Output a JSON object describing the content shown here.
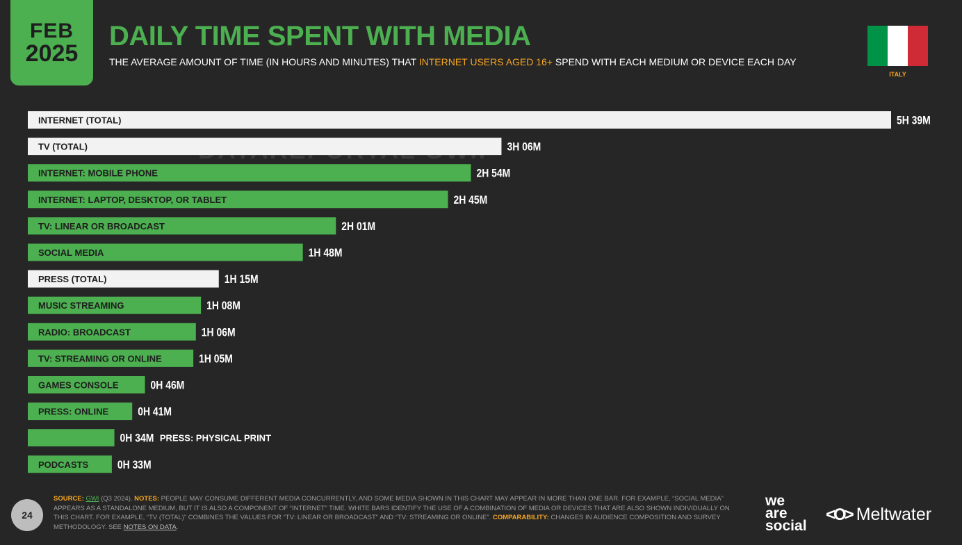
{
  "badge": {
    "month": "FEB",
    "year": "2025"
  },
  "header": {
    "title": "DAILY TIME SPENT WITH MEDIA",
    "subtitle_pre": "THE AVERAGE AMOUNT OF TIME (IN HOURS AND MINUTES) THAT ",
    "subtitle_highlight": "INTERNET USERS AGED 16+",
    "subtitle_post": " SPEND WITH EACH MEDIUM OR DEVICE EACH DAY"
  },
  "country": {
    "label": "ITALY",
    "flag_colors": [
      "#009246",
      "#ffffff",
      "#ce2b37"
    ]
  },
  "watermark": "DATAREPORTAL  GWI.",
  "colors": {
    "accent": "#4caf50",
    "white_bar": "#f2f2f2",
    "highlight": "#f5a623",
    "background": "#262626"
  },
  "chart_data": {
    "type": "bar",
    "orientation": "horizontal",
    "unit": "minutes",
    "xlim": [
      0,
      339
    ],
    "categories": [
      "INTERNET (TOTAL)",
      "TV (TOTAL)",
      "INTERNET: MOBILE PHONE",
      "INTERNET: LAPTOP, DESKTOP, OR TABLET",
      "TV: LINEAR OR BROADCAST",
      "SOCIAL MEDIA",
      "PRESS (TOTAL)",
      "MUSIC STREAMING",
      "RADIO: BROADCAST",
      "TV: STREAMING OR ONLINE",
      "GAMES CONSOLE",
      "PRESS: ONLINE",
      "PRESS: PHYSICAL PRINT",
      "PODCASTS"
    ],
    "values": [
      339,
      186,
      174,
      165,
      121,
      108,
      75,
      68,
      66,
      65,
      46,
      41,
      34,
      33
    ],
    "value_labels": [
      "5H 39M",
      "3H 06M",
      "2H 54M",
      "2H 45M",
      "2H 01M",
      "1H 48M",
      "1H 15M",
      "1H 08M",
      "1H 06M",
      "1H 05M",
      "0H 46M",
      "0H 41M",
      "0H 34M",
      "0H 33M"
    ],
    "bar_style": [
      "white",
      "white",
      "green",
      "green",
      "green",
      "green",
      "white",
      "green",
      "green",
      "green",
      "green",
      "green",
      "green",
      "green"
    ],
    "label_outside": [
      false,
      false,
      false,
      false,
      false,
      false,
      false,
      false,
      false,
      false,
      false,
      false,
      true,
      false
    ]
  },
  "footer": {
    "source_key": "SOURCE:",
    "source_link": "GWI",
    "source_rest": " (Q3 2024). ",
    "notes_key": "NOTES:",
    "notes_text": " PEOPLE MAY CONSUME DIFFERENT MEDIA CONCURRENTLY, AND SOME MEDIA SHOWN IN THIS CHART MAY APPEAR IN MORE THAN ONE BAR. FOR EXAMPLE, “SOCIAL MEDIA” APPEARS AS A STANDALONE MEDIUM, BUT IT IS ALSO A COMPONENT OF “INTERNET” TIME. WHITE BARS IDENTIFY THE USE OF A COMBINATION OF MEDIA OR DEVICES THAT ARE ALSO SHOWN INDIVIDUALLY ON THIS CHART. FOR EXAMPLE, “TV (TOTAL)” COMBINES THE VALUES FOR “TV: LINEAR OR BROADCAST” AND “TV: STREAMING OR ONLINE”. ",
    "comparability_key": "COMPARABILITY:",
    "comparability_text": " CHANGES IN AUDIENCE COMPOSITION AND SURVEY METHODOLOGY. SEE ",
    "notes_link": "NOTES ON DATA",
    "end": "."
  },
  "page_number": "24",
  "logos": {
    "was_line1": "we",
    "was_line2": "are",
    "was_line3": "social",
    "meltwater_icon": "<O>",
    "meltwater": "Meltwater"
  }
}
